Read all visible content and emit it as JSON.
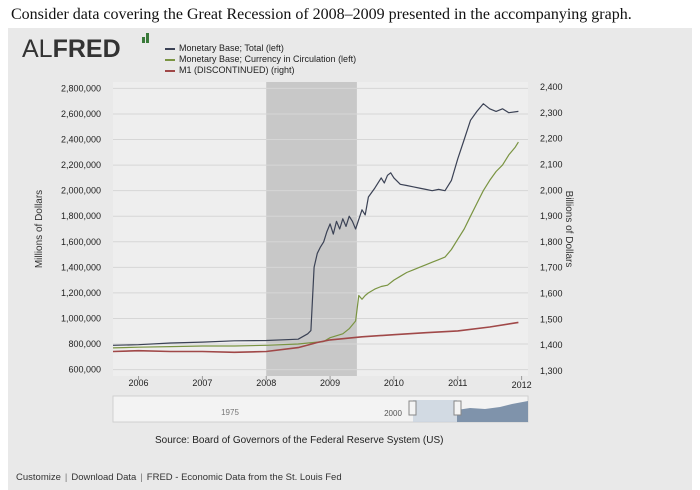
{
  "question": "Consider data covering the Great Recession of 2008–2009 presented in the accompanying graph.",
  "logo": {
    "light": "AL",
    "bold": "FRED"
  },
  "colors": {
    "monetary_base": "#3b4255",
    "currency": "#7a9442",
    "m1": "#a04848",
    "recession": "#c8c8c8",
    "plot_bg": "#eeeeee",
    "grid": "#d6d6d6"
  },
  "chart_data": {
    "type": "line",
    "x_tick_labels": [
      "2006",
      "2007",
      "2008",
      "2009",
      "2010",
      "2011",
      "2012"
    ],
    "xlim": [
      2005.6,
      2012.1
    ],
    "ylabel": "Millions of Dollars",
    "ylim": [
      550000,
      2850000
    ],
    "y_tick_labels": [
      "2,800,000",
      "2,600,000",
      "2,400,000",
      "2,200,000",
      "2,000,000",
      "1,800,000",
      "1,600,000",
      "1,400,000",
      "1,200,000",
      "1,000,000",
      "800,000",
      "600,000"
    ],
    "y_ticks": [
      2800000,
      2600000,
      2400000,
      2200000,
      2000000,
      1800000,
      1600000,
      1400000,
      1200000,
      1000000,
      800000,
      600000
    ],
    "y2label": "Billions of Dollars",
    "y2lim": [
      1280,
      2420
    ],
    "y2_tick_labels": [
      "2,400",
      "2,300",
      "2,200",
      "2,100",
      "2,000",
      "1,900",
      "1,800",
      "1,700",
      "1,600",
      "1,500",
      "1,400",
      "1,300"
    ],
    "y2_ticks": [
      2400,
      2300,
      2200,
      2100,
      2000,
      1900,
      1800,
      1700,
      1600,
      1500,
      1400,
      1300
    ],
    "recession": [
      2008.0,
      2009.42
    ],
    "series": [
      {
        "name": "Monetary Base; Total (left)",
        "axis": "left",
        "points": [
          [
            2005.6,
            790000
          ],
          [
            2006.0,
            795000
          ],
          [
            2006.5,
            808000
          ],
          [
            2007.0,
            815000
          ],
          [
            2007.5,
            825000
          ],
          [
            2008.0,
            828000
          ],
          [
            2008.5,
            838000
          ],
          [
            2008.65,
            880000
          ],
          [
            2008.7,
            905000
          ],
          [
            2008.75,
            1400000
          ],
          [
            2008.8,
            1510000
          ],
          [
            2008.85,
            1560000
          ],
          [
            2008.9,
            1600000
          ],
          [
            2008.95,
            1680000
          ],
          [
            2009.0,
            1740000
          ],
          [
            2009.05,
            1660000
          ],
          [
            2009.1,
            1760000
          ],
          [
            2009.15,
            1700000
          ],
          [
            2009.2,
            1780000
          ],
          [
            2009.25,
            1720000
          ],
          [
            2009.3,
            1800000
          ],
          [
            2009.35,
            1760000
          ],
          [
            2009.4,
            1700000
          ],
          [
            2009.5,
            1850000
          ],
          [
            2009.55,
            1810000
          ],
          [
            2009.6,
            1950000
          ],
          [
            2009.7,
            2020000
          ],
          [
            2009.8,
            2100000
          ],
          [
            2009.85,
            2060000
          ],
          [
            2009.9,
            2120000
          ],
          [
            2009.95,
            2140000
          ],
          [
            2010.0,
            2100000
          ],
          [
            2010.1,
            2050000
          ],
          [
            2010.2,
            2040000
          ],
          [
            2010.3,
            2030000
          ],
          [
            2010.4,
            2020000
          ],
          [
            2010.5,
            2010000
          ],
          [
            2010.6,
            2000000
          ],
          [
            2010.7,
            2010000
          ],
          [
            2010.8,
            2000000
          ],
          [
            2010.9,
            2080000
          ],
          [
            2011.0,
            2250000
          ],
          [
            2011.1,
            2400000
          ],
          [
            2011.2,
            2550000
          ],
          [
            2011.3,
            2620000
          ],
          [
            2011.4,
            2680000
          ],
          [
            2011.5,
            2640000
          ],
          [
            2011.6,
            2620000
          ],
          [
            2011.7,
            2640000
          ],
          [
            2011.8,
            2610000
          ],
          [
            2011.95,
            2620000
          ]
        ]
      },
      {
        "name": "Monetary Base; Currency in Circulation (left)",
        "axis": "left",
        "points": [
          [
            2005.6,
            770000
          ],
          [
            2006.0,
            775000
          ],
          [
            2006.5,
            780000
          ],
          [
            2007.0,
            785000
          ],
          [
            2007.5,
            785000
          ],
          [
            2008.0,
            790000
          ],
          [
            2008.5,
            800000
          ],
          [
            2008.9,
            820000
          ],
          [
            2009.0,
            850000
          ],
          [
            2009.2,
            880000
          ],
          [
            2009.3,
            920000
          ],
          [
            2009.4,
            980000
          ],
          [
            2009.45,
            1180000
          ],
          [
            2009.5,
            1150000
          ],
          [
            2009.55,
            1180000
          ],
          [
            2009.6,
            1200000
          ],
          [
            2009.7,
            1230000
          ],
          [
            2009.8,
            1250000
          ],
          [
            2009.9,
            1260000
          ],
          [
            2010.0,
            1300000
          ],
          [
            2010.1,
            1330000
          ],
          [
            2010.2,
            1360000
          ],
          [
            2010.3,
            1380000
          ],
          [
            2010.4,
            1400000
          ],
          [
            2010.5,
            1420000
          ],
          [
            2010.6,
            1440000
          ],
          [
            2010.7,
            1460000
          ],
          [
            2010.8,
            1480000
          ],
          [
            2010.9,
            1540000
          ],
          [
            2011.0,
            1620000
          ],
          [
            2011.1,
            1700000
          ],
          [
            2011.2,
            1800000
          ],
          [
            2011.3,
            1900000
          ],
          [
            2011.4,
            2000000
          ],
          [
            2011.5,
            2080000
          ],
          [
            2011.6,
            2150000
          ],
          [
            2011.7,
            2200000
          ],
          [
            2011.8,
            2280000
          ],
          [
            2011.9,
            2340000
          ],
          [
            2011.95,
            2380000
          ]
        ]
      },
      {
        "name": "M1 (DISCONTINUED) (right)",
        "axis": "right",
        "points": [
          [
            2005.6,
            1375
          ],
          [
            2006.0,
            1378
          ],
          [
            2006.5,
            1375
          ],
          [
            2007.0,
            1375
          ],
          [
            2007.5,
            1372
          ],
          [
            2008.0,
            1375
          ],
          [
            2008.5,
            1390
          ],
          [
            2008.8,
            1410
          ],
          [
            2009.0,
            1420
          ],
          [
            2009.5,
            1432
          ],
          [
            2010.0,
            1440
          ],
          [
            2010.5,
            1448
          ],
          [
            2011.0,
            1455
          ],
          [
            2011.5,
            1470
          ],
          [
            2011.95,
            1488
          ]
        ]
      }
    ]
  },
  "navigator": {
    "start_label": "1975",
    "end_label": "2000"
  },
  "source": "Source: Board of Governors of the Federal Reserve System (US)",
  "footer": {
    "customize": "Customize",
    "download": "Download Data",
    "fred": "FRED - Economic Data from the St. Louis Fed"
  }
}
